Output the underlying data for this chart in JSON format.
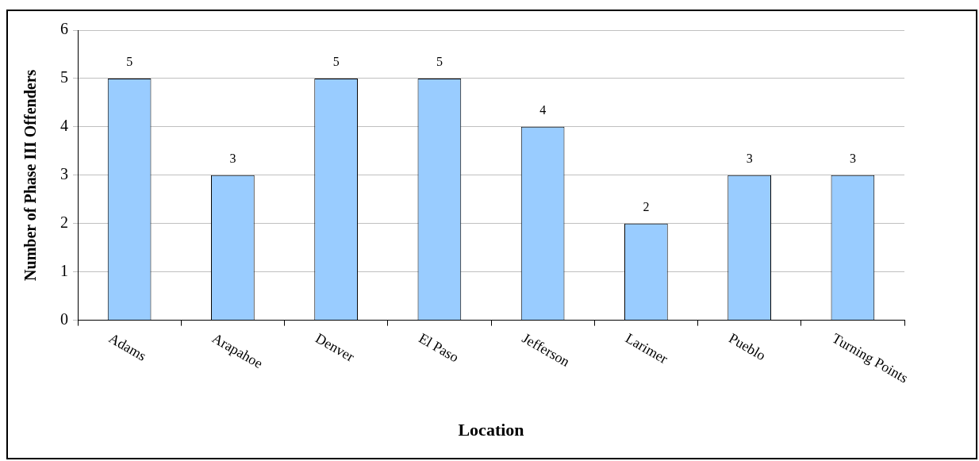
{
  "chart_data": {
    "type": "bar",
    "xlabel": "Location",
    "ylabel": "Number of Phase III Offenders",
    "categories": [
      "Adams",
      "Arapahoe",
      "Denver",
      "El Paso",
      "Jefferson",
      "Larimer",
      "Pueblo",
      "Turning Points"
    ],
    "values": [
      5,
      3,
      5,
      5,
      4,
      2,
      3,
      3
    ],
    "color": "#99ccff",
    "ylim": [
      0,
      6
    ],
    "yticks": [
      0,
      1,
      2,
      3,
      4,
      5,
      6
    ],
    "grid": "y",
    "data_labels": true
  }
}
